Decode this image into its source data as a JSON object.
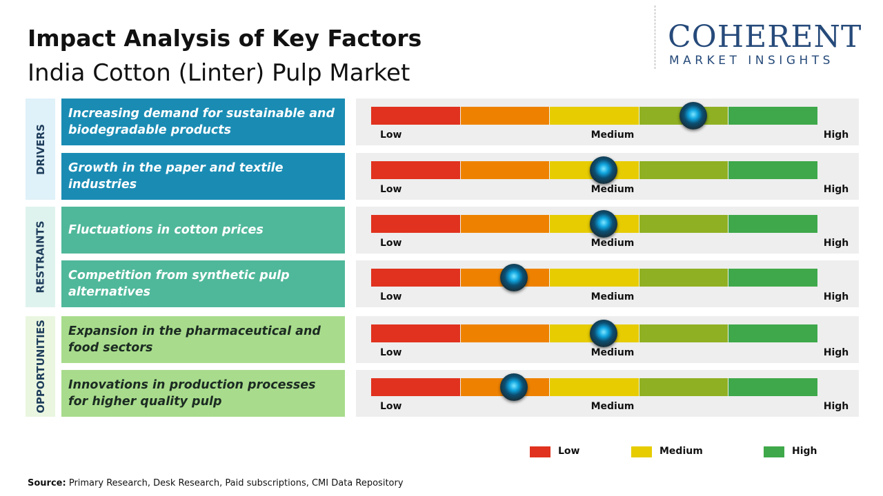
{
  "header": {
    "title": "Impact Analysis of Key Factors",
    "subtitle": "India Cotton (Linter) Pulp Market"
  },
  "logo": {
    "name": "COHERENT",
    "tagline": "MARKET INSIGHTS"
  },
  "gauge_range": [
    0,
    5
  ],
  "segment_colors": [
    "#e0321e",
    "#ee8200",
    "#e6cc00",
    "#8fb022",
    "#3ea84a"
  ],
  "scale_labels": [
    "Low",
    "Medium",
    "High"
  ],
  "groups": [
    {
      "label": "DRIVERS",
      "factors": [
        {
          "text": "Increasing demand for sustainable and biodegradable products",
          "impact": 3.6
        },
        {
          "text": "Growth in the paper and textile industries",
          "impact": 2.6
        }
      ]
    },
    {
      "label": "RESTRAINTS",
      "factors": [
        {
          "text": "Fluctuations in cotton prices",
          "impact": 2.6
        },
        {
          "text": "Competition from synthetic pulp alternatives",
          "impact": 1.6
        }
      ]
    },
    {
      "label": "OPPORTUNITIES",
      "factors": [
        {
          "text": "Expansion in the pharmaceutical and food sectors",
          "impact": 2.6
        },
        {
          "text": "Innovations in production processes for higher quality pulp",
          "impact": 1.6
        }
      ]
    }
  ],
  "legend": [
    {
      "label": "Low",
      "color": "#e0321e"
    },
    {
      "label": "Medium",
      "color": "#e6cc00"
    },
    {
      "label": "High",
      "color": "#3ea84a"
    }
  ],
  "source": {
    "label": "Source:",
    "text": "Primary Research, Desk Research, Paid subscriptions, CMI Data Repository"
  }
}
